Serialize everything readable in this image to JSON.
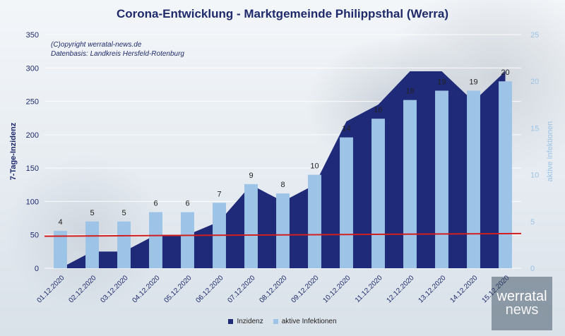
{
  "title": "Corona-Entwicklung - Marktgemeinde Philippsthal (Werra)",
  "meta": {
    "copyright": "(C)opyright werratal-news.de",
    "source": "Datenbasis: Landkreis Hersfeld-Rotenburg"
  },
  "logo": {
    "line1": "werratal",
    "line2": "news"
  },
  "colors": {
    "inzidenz": "#1f2a78",
    "infektionen": "#9dc3e6",
    "threshold": "#d11f1f",
    "grid": "#ffffff"
  },
  "chart_data": {
    "type": "bar",
    "categories": [
      "01.12.2020",
      "02.12.2020",
      "03.12.2020",
      "04.12.2020",
      "05.12.2020",
      "06.12.2020",
      "07.12.2020",
      "08.12.2020",
      "09.12.2020",
      "10.12.2020",
      "11.12.2020",
      "12.12.2020",
      "13.12.2020",
      "14.12.2020",
      "15.12.2020"
    ],
    "series": [
      {
        "name": "Inzidenz",
        "type": "area",
        "axis": "left",
        "values": [
          0,
          25,
          25,
          50,
          50,
          70,
          125,
          100,
          125,
          220,
          245,
          295,
          295,
          250,
          295
        ]
      },
      {
        "name": "aktive Infektionen",
        "type": "bar",
        "axis": "right",
        "values": [
          4,
          5,
          5,
          6,
          6,
          7,
          9,
          8,
          10,
          14,
          16,
          18,
          19,
          19,
          20
        ],
        "labels": [
          "4",
          "5",
          "5",
          "6",
          "6",
          "7",
          "9",
          "8",
          "10",
          "14",
          "16",
          "18",
          "19",
          "19",
          "20"
        ]
      }
    ],
    "threshold": {
      "from": 48,
      "to": 52
    },
    "ylabel": "7-Tage-Inzidenz",
    "y2label": "aktive Infektionen",
    "ylim": [
      0,
      350
    ],
    "y2lim": [
      0,
      25
    ],
    "yticks": [
      "0",
      "50",
      "100",
      "150",
      "200",
      "250",
      "300",
      "350"
    ],
    "y2ticks": [
      "0",
      "5",
      "10",
      "15",
      "20",
      "25"
    ],
    "legend_position": "bottom",
    "grid": true
  }
}
